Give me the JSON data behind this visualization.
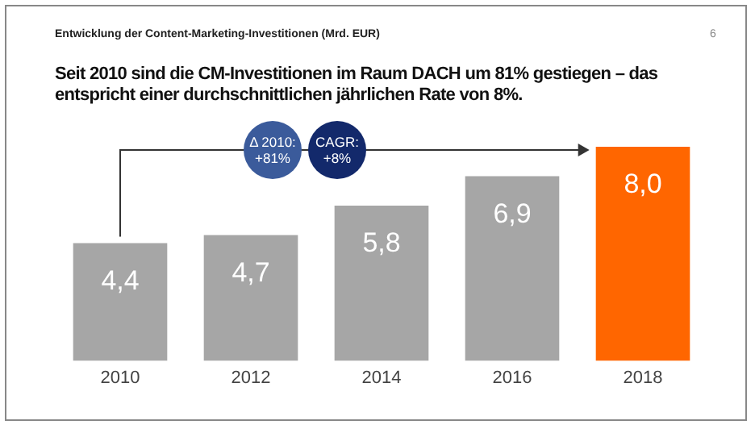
{
  "chart_data": {
    "type": "bar",
    "title": "Entwicklung der Content-Marketing-Investitionen (Mrd. EUR)",
    "subtitle": "Seit 2010 sind die CM-Investitionen im Raum DACH um 81% gestiegen – das entspricht einer durchschnittlichen jährlichen Rate von 8%.",
    "categories": [
      "2010",
      "2012",
      "2014",
      "2016",
      "2018"
    ],
    "values": [
      4.4,
      4.7,
      5.8,
      6.9,
      8.0
    ],
    "value_labels": [
      "4,4",
      "4,7",
      "5,8",
      "6,9",
      "8,0"
    ],
    "colors": [
      "#a6a6a6",
      "#a6a6a6",
      "#a6a6a6",
      "#a6a6a6",
      "#ff6600"
    ],
    "annotations": [
      "6",
      "Δ 2010: +81%",
      "CAGR: +8%"
    ],
    "grid": false,
    "legend": false
  }
}
